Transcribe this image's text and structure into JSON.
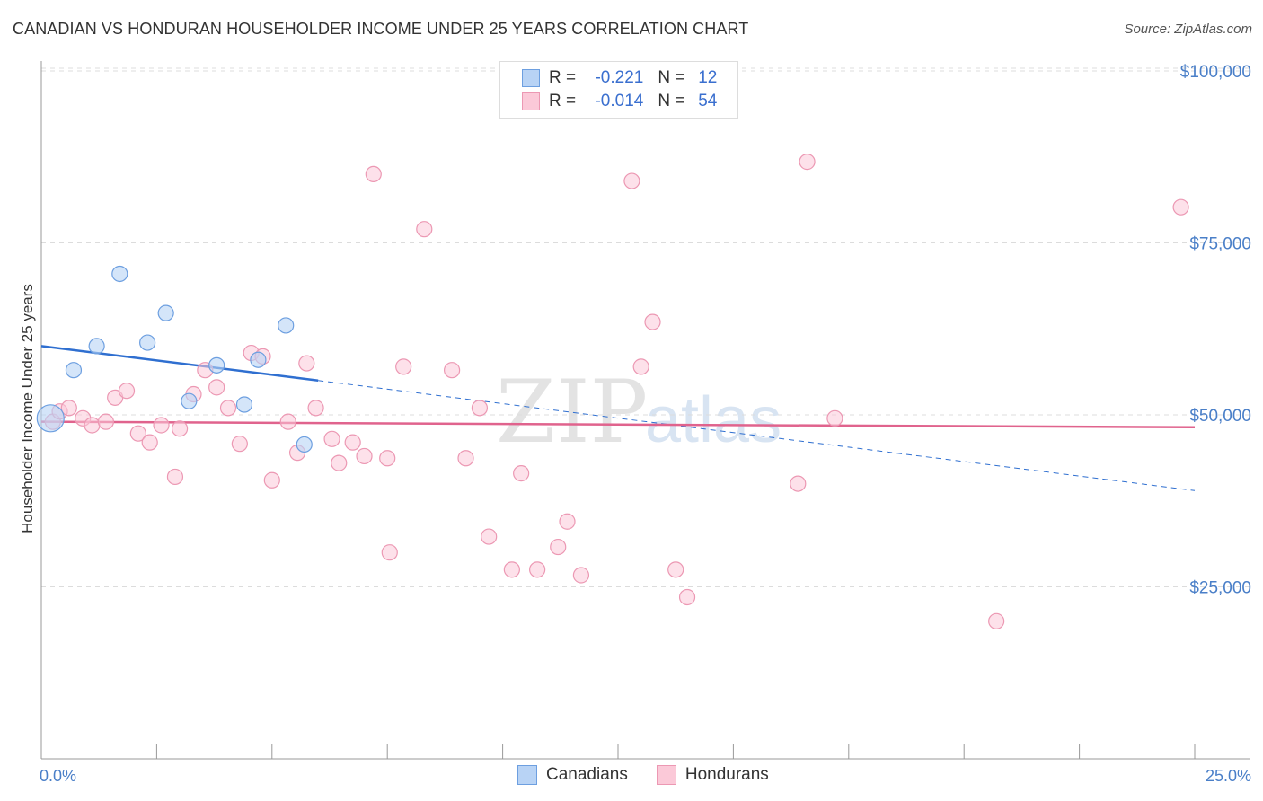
{
  "header": {
    "title": "CANADIAN VS HONDURAN HOUSEHOLDER INCOME UNDER 25 YEARS CORRELATION CHART",
    "source": "Source: ZipAtlas.com"
  },
  "legend": {
    "rows": [
      {
        "r_label": "R =",
        "r_value": "-0.221",
        "n_label": "N =",
        "n_value": "12"
      },
      {
        "r_label": "R =",
        "r_value": "-0.014",
        "n_label": "N =",
        "n_value": "54"
      }
    ]
  },
  "watermark": {
    "zip": "ZIP",
    "atlas": "atlas"
  },
  "colors": {
    "canadians_fill": "#b8d3f5",
    "canadians_stroke": "#6d9fe0",
    "canadians_line": "#2f6fd0",
    "hondurans_fill": "#fbc9d8",
    "hondurans_stroke": "#ec98b3",
    "hondurans_line": "#e0638d",
    "tick_text": "#4a7fc8"
  },
  "chart_data": {
    "type": "scatter",
    "title": "CANADIAN VS HONDURAN HOUSEHOLDER INCOME UNDER 25 YEARS CORRELATION CHART",
    "xlabel": "",
    "ylabel": "Householder Income Under 25 years",
    "xlim": [
      0,
      25
    ],
    "ylim": [
      0,
      105000
    ],
    "x_tick_labels": [
      "0.0%",
      "25.0%"
    ],
    "y_ticks": [
      25000,
      50000,
      75000,
      100000
    ],
    "y_tick_labels": [
      "$25,000",
      "$50,000",
      "$75,000",
      "$100,000"
    ],
    "grid": "horizontal dashed",
    "legend_position": "top-center and bottom",
    "series": [
      {
        "name": "Canadians",
        "r": -0.221,
        "n": 12,
        "points": [
          [
            0.2,
            49500
          ],
          [
            0.7,
            56500
          ],
          [
            1.2,
            60000
          ],
          [
            1.7,
            70500
          ],
          [
            2.3,
            60500
          ],
          [
            2.7,
            64800
          ],
          [
            3.2,
            52000
          ],
          [
            3.8,
            57200
          ],
          [
            4.4,
            51500
          ],
          [
            4.7,
            58000
          ],
          [
            5.3,
            63000
          ],
          [
            5.7,
            45700
          ]
        ],
        "trend": {
          "x": [
            0,
            6
          ],
          "y": [
            60000,
            55000
          ]
        },
        "trend_extension": {
          "x": [
            6,
            25
          ],
          "y": [
            55000,
            39000
          ]
        }
      },
      {
        "name": "Hondurans",
        "r": -0.014,
        "n": 54,
        "points": [
          [
            0.25,
            49000
          ],
          [
            0.4,
            50500
          ],
          [
            0.6,
            51000
          ],
          [
            0.9,
            49500
          ],
          [
            1.1,
            48500
          ],
          [
            1.4,
            49000
          ],
          [
            1.6,
            52500
          ],
          [
            1.85,
            53500
          ],
          [
            2.1,
            47300
          ],
          [
            2.35,
            46000
          ],
          [
            2.6,
            48500
          ],
          [
            2.9,
            41000
          ],
          [
            3.0,
            48000
          ],
          [
            3.3,
            53000
          ],
          [
            3.55,
            56500
          ],
          [
            3.8,
            54000
          ],
          [
            4.05,
            51000
          ],
          [
            4.3,
            45800
          ],
          [
            4.55,
            59000
          ],
          [
            4.8,
            58500
          ],
          [
            5.0,
            40500
          ],
          [
            5.35,
            49000
          ],
          [
            5.55,
            44500
          ],
          [
            5.75,
            57500
          ],
          [
            5.95,
            51000
          ],
          [
            6.3,
            46500
          ],
          [
            6.45,
            43000
          ],
          [
            6.75,
            46000
          ],
          [
            7.0,
            44000
          ],
          [
            7.2,
            85000
          ],
          [
            7.5,
            43700
          ],
          [
            7.55,
            30000
          ],
          [
            7.85,
            57000
          ],
          [
            8.3,
            77000
          ],
          [
            8.9,
            56500
          ],
          [
            9.2,
            43700
          ],
          [
            9.5,
            51000
          ],
          [
            9.7,
            32300
          ],
          [
            10.2,
            27500
          ],
          [
            10.4,
            41500
          ],
          [
            10.75,
            27500
          ],
          [
            11.2,
            30800
          ],
          [
            11.4,
            34500
          ],
          [
            11.7,
            26700
          ],
          [
            12.8,
            84000
          ],
          [
            13.0,
            57000
          ],
          [
            13.25,
            63500
          ],
          [
            13.75,
            27500
          ],
          [
            14.0,
            23500
          ],
          [
            16.4,
            40000
          ],
          [
            16.6,
            86800
          ],
          [
            17.2,
            49500
          ],
          [
            20.7,
            20000
          ],
          [
            24.7,
            80200
          ]
        ],
        "trend": {
          "x": [
            0,
            25
          ],
          "y": [
            49000,
            48200
          ]
        }
      }
    ]
  },
  "bottom_legend": {
    "items": [
      "Canadians",
      "Hondurans"
    ]
  }
}
